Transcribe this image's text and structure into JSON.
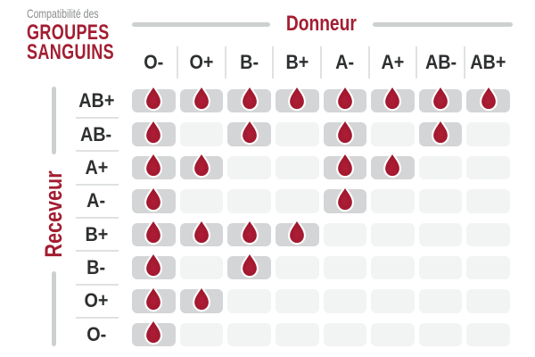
{
  "title": {
    "eyebrow": "Compatibilité des",
    "line1": "GROUPES",
    "line2": "SANGUINS"
  },
  "donor_axis_label": "Donneur",
  "receiver_axis_label": "Receveur",
  "icons": {
    "compatible_marker": "blood-drop-icon"
  },
  "colors": {
    "accent_red": "#A31D31",
    "drop_red_center": "#AE1E36",
    "drop_red_edge": "#901427",
    "drop_outline": "#FFFFFF",
    "cell_compatible_bg": "#D3D5D6",
    "cell_incompatible_bg": "#F2F3F3",
    "label_text": "#2D2F30",
    "muted_text": "#8A8C8D",
    "axis_bar_gray": "#CDD0D1",
    "separator_gray": "#DFE1E2",
    "background": "#FFFFFF"
  },
  "chart_data": {
    "type": "heatmap",
    "title": "Compatibilité des GROUPES SANGUINS",
    "x_axis_label": "Donneur",
    "y_axis_label": "Receveur",
    "donors": [
      "O-",
      "O+",
      "B-",
      "B+",
      "A-",
      "A+",
      "AB-",
      "AB+"
    ],
    "receivers": [
      "AB+",
      "AB-",
      "A+",
      "A-",
      "B+",
      "B-",
      "O+",
      "O-"
    ],
    "compatibility_matrix": [
      [
        1,
        1,
        1,
        1,
        1,
        1,
        1,
        1
      ],
      [
        1,
        0,
        1,
        0,
        1,
        0,
        1,
        0
      ],
      [
        1,
        1,
        0,
        0,
        1,
        1,
        0,
        0
      ],
      [
        1,
        0,
        0,
        0,
        1,
        0,
        0,
        0
      ],
      [
        1,
        1,
        1,
        1,
        0,
        0,
        0,
        0
      ],
      [
        1,
        0,
        1,
        0,
        0,
        0,
        0,
        0
      ],
      [
        1,
        1,
        0,
        0,
        0,
        0,
        0,
        0
      ],
      [
        1,
        0,
        0,
        0,
        0,
        0,
        0,
        0
      ]
    ],
    "marker_meaning": "blood drop shown = donor compatible with receiver",
    "grid": "rounded cells, darker gray when compatible",
    "legend_position": "none"
  }
}
